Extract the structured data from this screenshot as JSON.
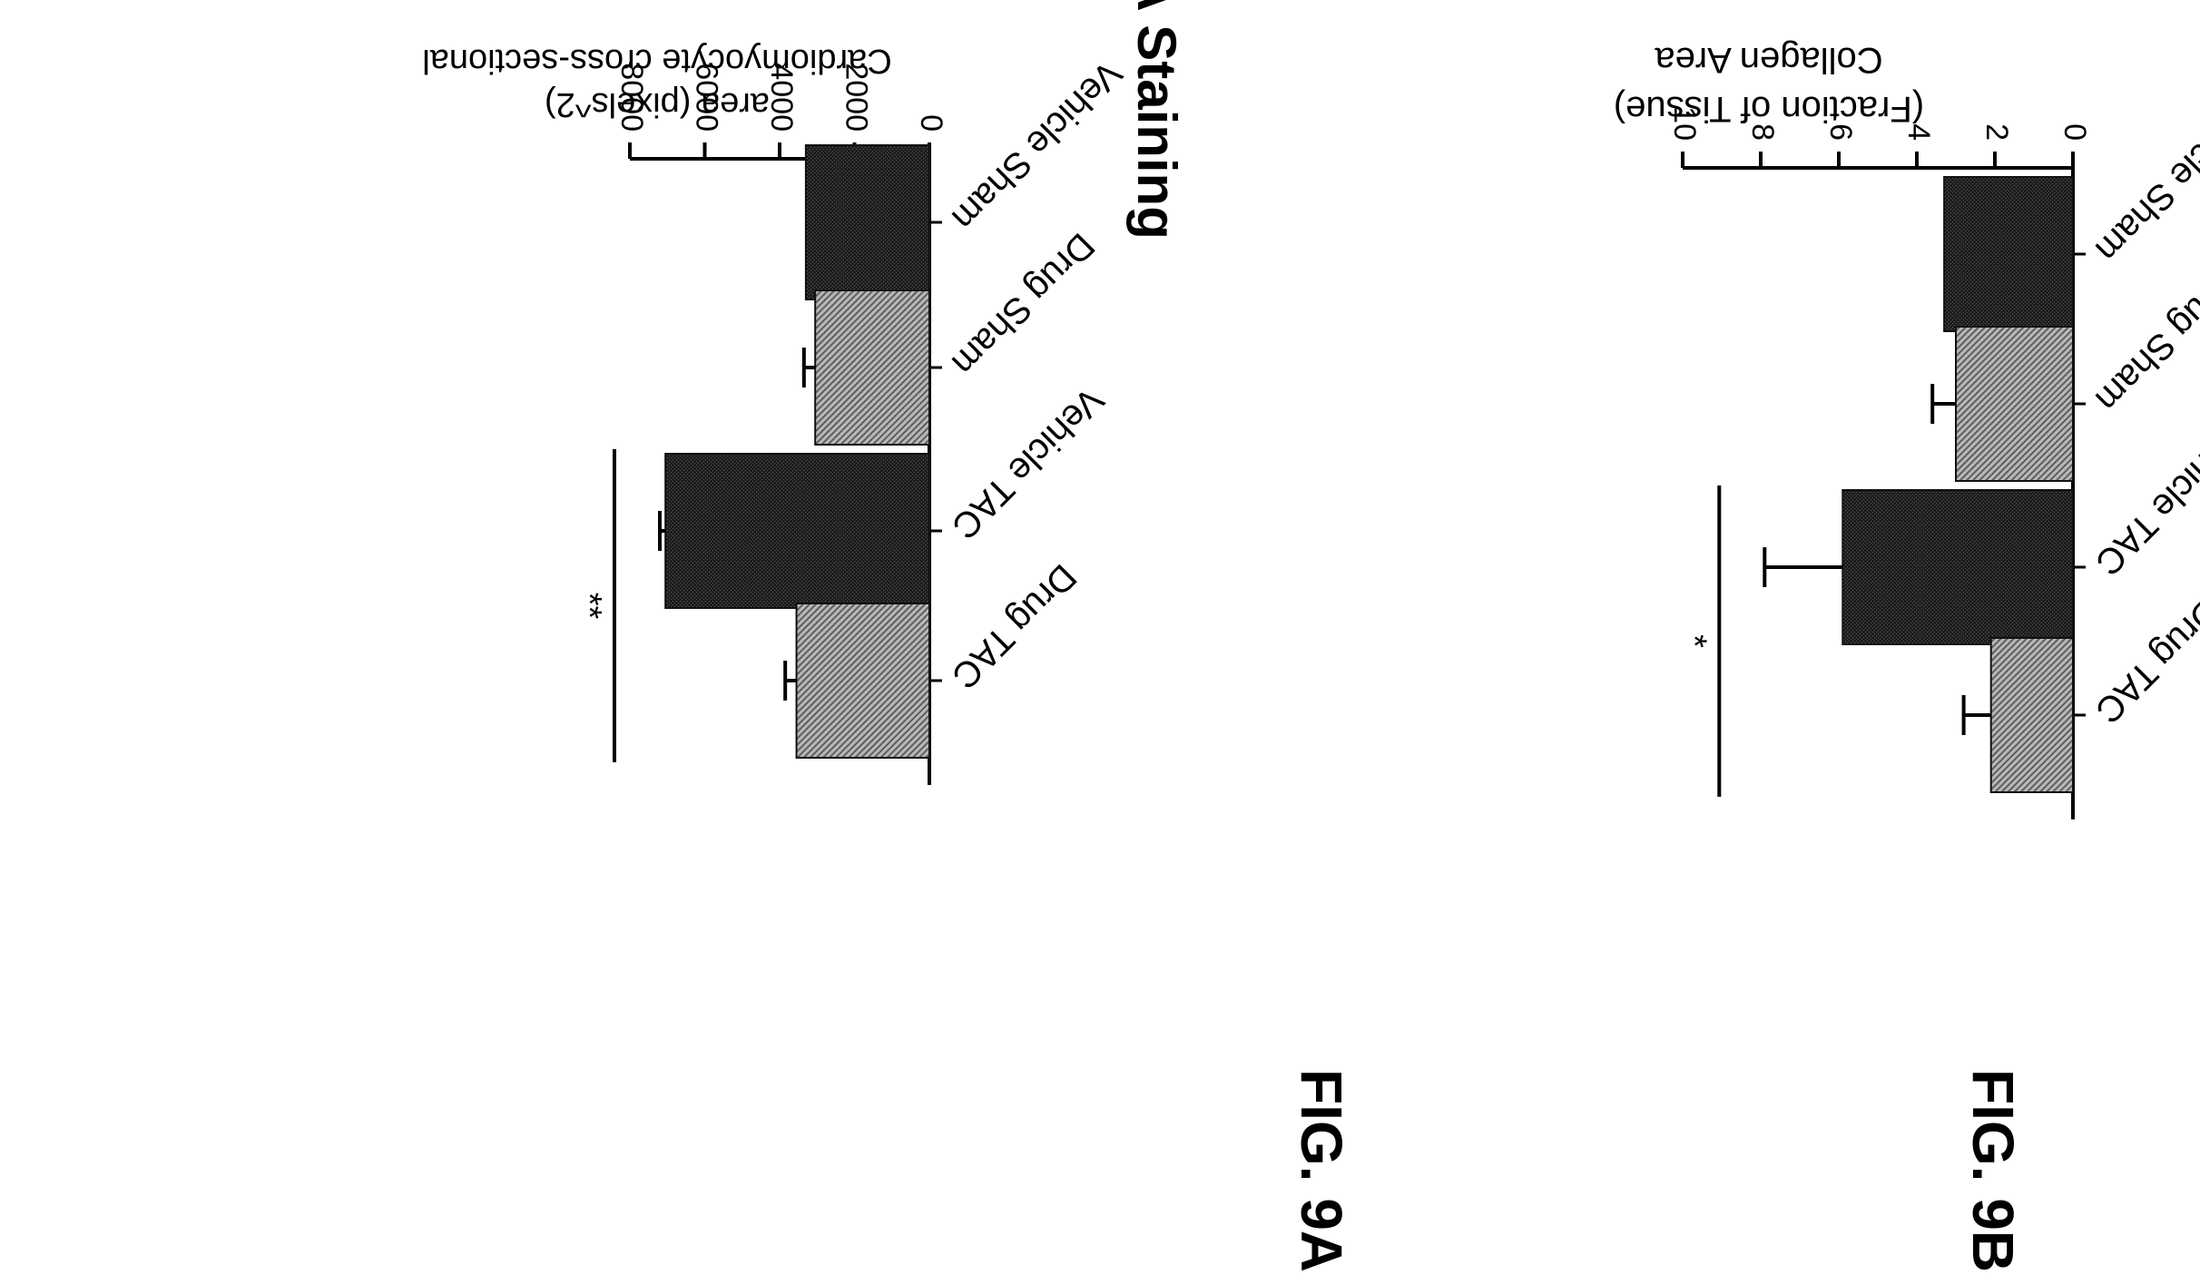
{
  "page_orientation": "rotated-180",
  "chart_data": [
    {
      "id": "9A",
      "type": "bar",
      "title": "WGA Staining",
      "figure_label": "FIG. 9A",
      "ylabel_lines": [
        "Cardiomyocyte cross-sectional",
        "area  (pixels^2)"
      ],
      "xlabel": "",
      "categories": [
        "Vehicle Sham",
        "Drug Sham",
        "Vehicle TAC",
        "Drug TAC"
      ],
      "values": [
        3300,
        3050,
        7050,
        3550
      ],
      "errors": [
        0,
        300,
        150,
        300
      ],
      "bar_styles": [
        "dark",
        "light",
        "dark",
        "light"
      ],
      "ylim": [
        0,
        8000
      ],
      "yticks": [
        "0",
        "2000",
        "4000",
        "6000",
        "8000"
      ],
      "significance": [
        {
          "from": 2,
          "to": 3,
          "label": "**"
        }
      ],
      "grid": false,
      "legend": "none"
    },
    {
      "id": "9B",
      "type": "bar",
      "title": "",
      "figure_label": "FIG. 9B",
      "ylabel_lines": [
        "Collagen Area",
        "(Fraction of Tissue)"
      ],
      "xlabel": "",
      "categories": [
        "Vehicle Sham",
        "Drug Sham",
        "Vehicle TAC",
        "Drug TAC"
      ],
      "values": [
        3.3,
        3.0,
        5.9,
        2.1
      ],
      "errors": [
        0,
        0.6,
        2.0,
        0.7
      ],
      "bar_styles": [
        "dark",
        "light",
        "dark",
        "light"
      ],
      "ylim": [
        0,
        10
      ],
      "yticks": [
        "0",
        "2",
        "4",
        "6",
        "8",
        "10"
      ],
      "significance": [
        {
          "from": 2,
          "to": 3,
          "label": "*"
        }
      ],
      "grid": false,
      "legend": "none"
    }
  ],
  "colors": {
    "dark_bar": "#222222",
    "light_bar": "#8a8a8a",
    "axis": "#000000"
  }
}
